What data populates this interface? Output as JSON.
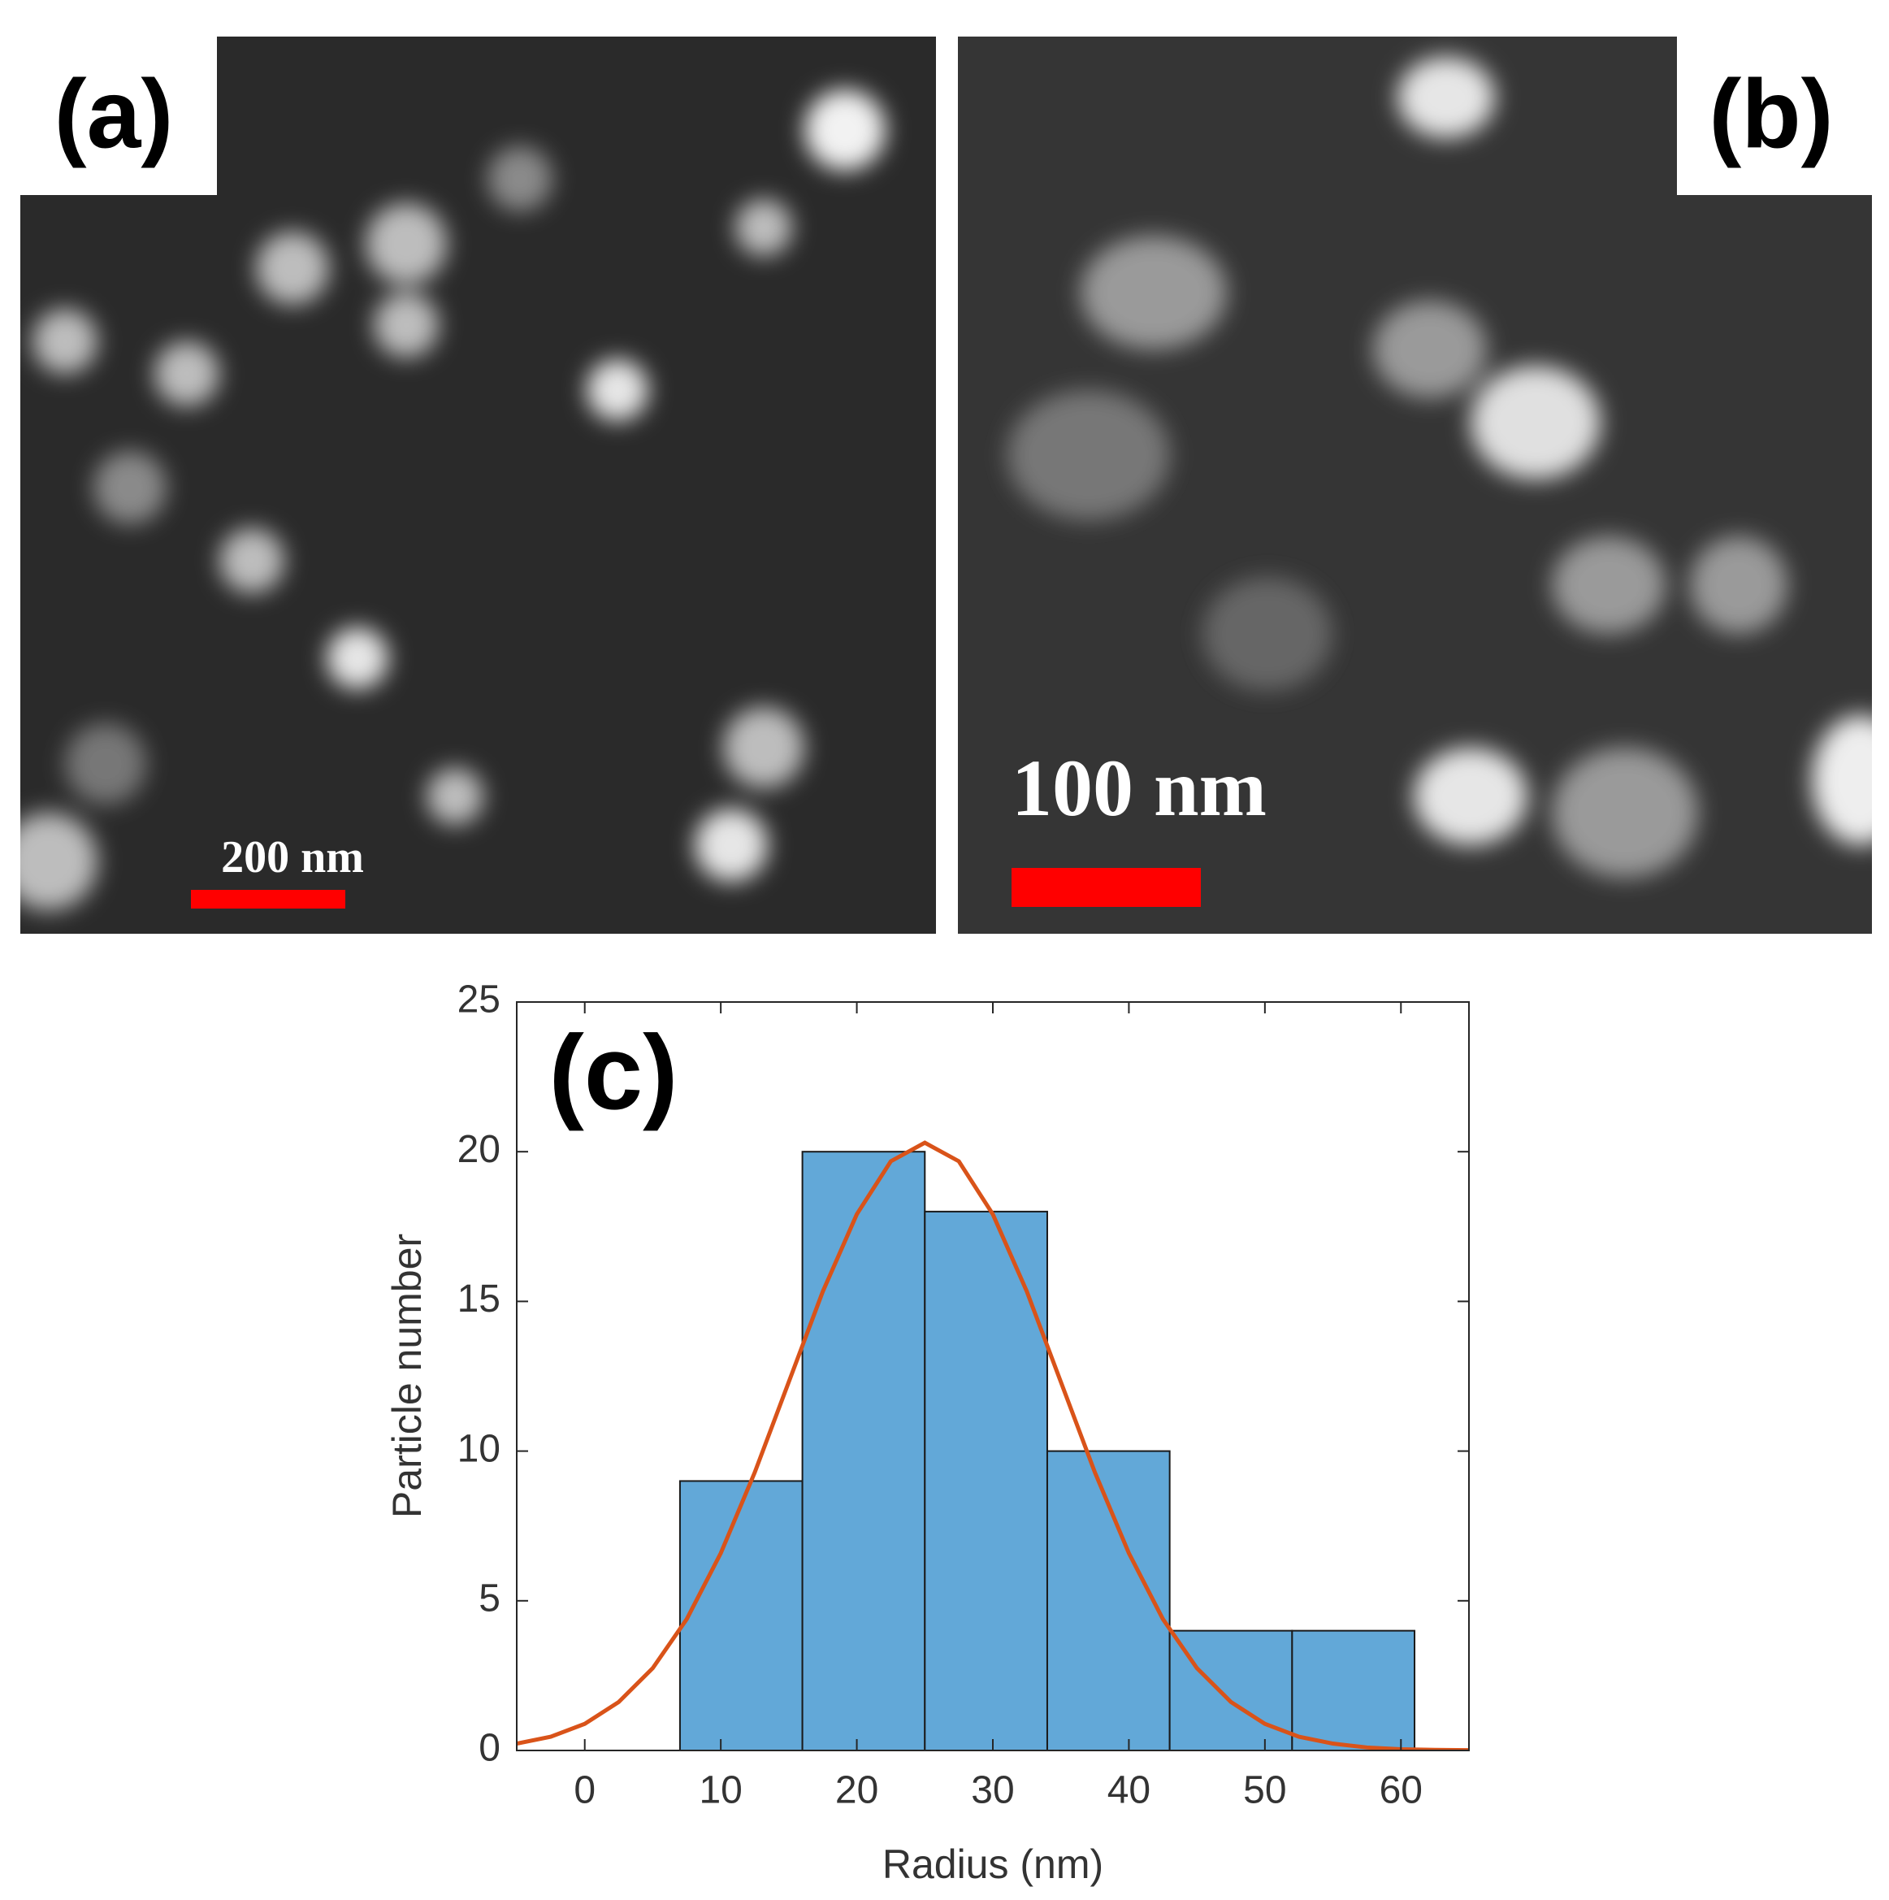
{
  "panels": [
    {
      "label": "(a)",
      "scale_bar": "200 nm"
    },
    {
      "label": "(b)",
      "scale_bar": "100 nm"
    }
  ],
  "chart_data": {
    "type": "histogram",
    "label": "(c)",
    "x_label": "Radius (nm)",
    "y_label": "Particle number",
    "bins": [
      7,
      16,
      25,
      34,
      43,
      52,
      61
    ],
    "values": [
      9,
      20,
      18,
      10,
      4,
      4
    ],
    "color": "#62a8d8",
    "edge_color": "#1a1a1a",
    "fit": {
      "color": "#d95319",
      "x": [
        -5,
        -2.5,
        0,
        2.5,
        5,
        7.5,
        10,
        12.5,
        15,
        17.5,
        20,
        22.5,
        25,
        27.5,
        30,
        32.5,
        35,
        37.5,
        40,
        42.5,
        45,
        47.5,
        50,
        52.5,
        55,
        57.5,
        60,
        62.5,
        65
      ],
      "values": [
        0.23,
        0.46,
        0.89,
        1.62,
        2.75,
        4.39,
        6.59,
        9.29,
        12.31,
        15.33,
        17.91,
        19.68,
        20.3,
        19.68,
        17.91,
        15.33,
        12.31,
        9.29,
        6.59,
        4.39,
        2.75,
        1.62,
        0.89,
        0.46,
        0.23,
        0.1,
        0.04,
        0.02,
        0.01
      ]
    },
    "xlim": [
      -5,
      65
    ],
    "xticks": [
      0,
      10,
      20,
      30,
      40,
      50,
      60
    ],
    "ylim": [
      0,
      25
    ],
    "yticks": [
      0,
      5,
      10,
      15,
      20,
      25
    ]
  }
}
